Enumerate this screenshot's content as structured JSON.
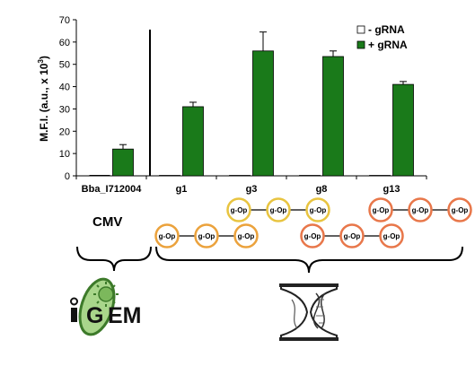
{
  "chart_data": {
    "type": "bar",
    "ylabel": "M.F.I. (a.u., x 10",
    "ylabel_sup": "3",
    "ylabel_close": ")",
    "ylim": [
      0,
      70
    ],
    "yticks": [
      0,
      10,
      20,
      30,
      40,
      50,
      60,
      70
    ],
    "categories": [
      "Bba_I712004",
      "g1",
      "g3",
      "g8",
      "g13"
    ],
    "series": [
      {
        "name": "- gRNA",
        "color": "#ffffff",
        "values": [
          0,
          0.2,
          0.2,
          0.2,
          0.2
        ],
        "errors": [
          0,
          0,
          0,
          0,
          0
        ]
      },
      {
        "name": "+ gRNA",
        "color": "#1a7a1a",
        "values": [
          12,
          31,
          56,
          53.5,
          41
        ],
        "errors": [
          2,
          2,
          8.5,
          2.5,
          1.3
        ]
      }
    ],
    "legend_position": "top-right",
    "grid": false
  },
  "annotations": {
    "cmv_label": "CMV",
    "operator_label": "g-Op",
    "logo_text_g": "G",
    "logo_text_em": "EM"
  },
  "colors": {
    "bar_green": "#1a7a1a",
    "op_yellow": "#e8c440",
    "op_orange": "#eba23c",
    "op_salmon": "#e8774a",
    "logo_green": "#7cb85c"
  }
}
